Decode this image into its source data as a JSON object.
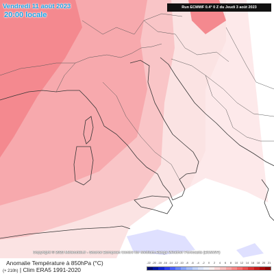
{
  "header": {
    "date_line": "Vendredi 11 août 2023",
    "time_line": "20:00 locale",
    "run_info": "Run ECMWF 0.4° 0 Z du Jeudi 3 août 2023"
  },
  "copyright": "Copyright © 2023 Meteociel.fr - Source European Centre for Medium-Range Weather Forecasts (ECMWF)",
  "footer": {
    "title": "Anomalie Température à 850hPa (°C)",
    "subtitle_small": "(+ 210h)",
    "subtitle": "| Clim ERA5 1991-2020"
  },
  "legend": {
    "labels": [
      "-22",
      "-20",
      "-18",
      "-16",
      "-14",
      "-12",
      "-10",
      "-8",
      "-6",
      "-4",
      "-2",
      "0",
      "2",
      "4",
      "6",
      "8",
      "10",
      "12",
      "14",
      "16",
      "18",
      "20",
      "21"
    ],
    "colors": [
      "#000b6e",
      "#0015a0",
      "#1024d0",
      "#2d3ff0",
      "#4a62ff",
      "#6886ff",
      "#8aa6ff",
      "#a9c0ff",
      "#c6d6ff",
      "#dee6ff",
      "#f0f3ff",
      "#fff0f0",
      "#ffd9d9",
      "#ffc0c0",
      "#ffa6a6",
      "#ff8b8b",
      "#f96f6f",
      "#ee5151",
      "#de3333",
      "#c81b1b",
      "#ae0c0c",
      "#8f0303"
    ]
  },
  "map": {
    "colors": {
      "background": "#fbe3e3",
      "warm_deep": "#f4898f",
      "warm": "#f7a9ad",
      "warm_light": "#f9c5c7",
      "pale": "#fde9ea",
      "neutral": "#ffffff",
      "cool": "#dfe0ff",
      "border": "#555555",
      "coast": "#333333"
    }
  }
}
